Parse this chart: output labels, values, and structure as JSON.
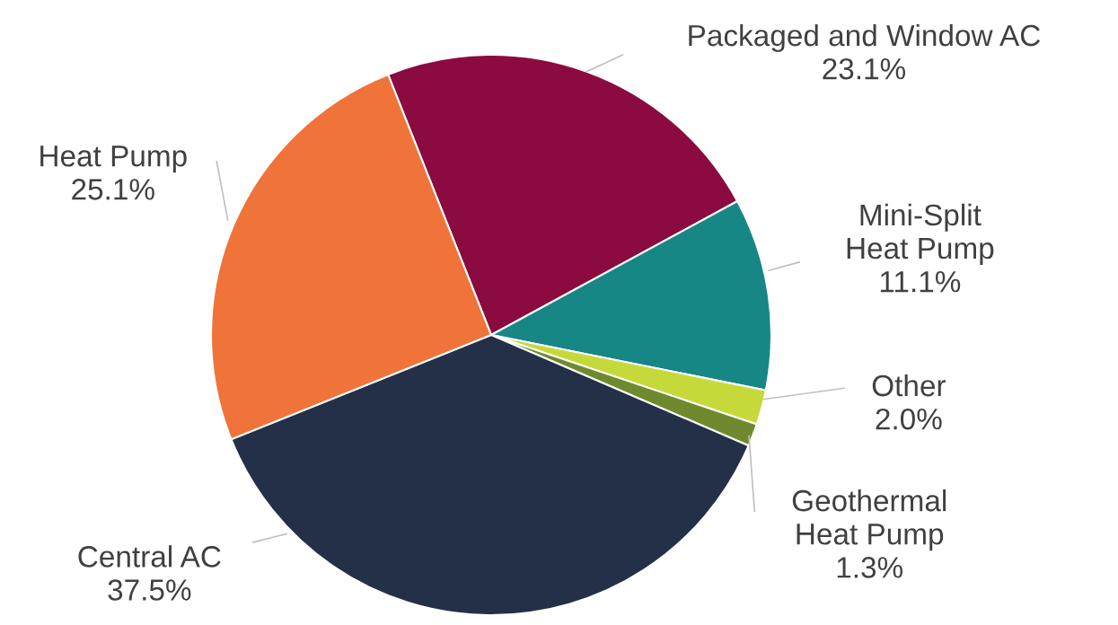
{
  "chart_data": {
    "type": "pie",
    "categories": [
      "Packaged and Window AC",
      "Mini-Split\nHeat Pump",
      "Other",
      "Geothermal\nHeat Pump",
      "Central AC",
      "Heat Pump"
    ],
    "values": [
      23.1,
      11.1,
      2.0,
      1.3,
      37.5,
      25.1
    ],
    "value_labels": [
      "23.1%",
      "11.1%",
      "2.0%",
      "1.3%",
      "37.5%",
      "25.1%"
    ],
    "colors": [
      "#8b0a40",
      "#178785",
      "#c5d93a",
      "#6f8a2e",
      "#233047",
      "#f0733a"
    ]
  }
}
